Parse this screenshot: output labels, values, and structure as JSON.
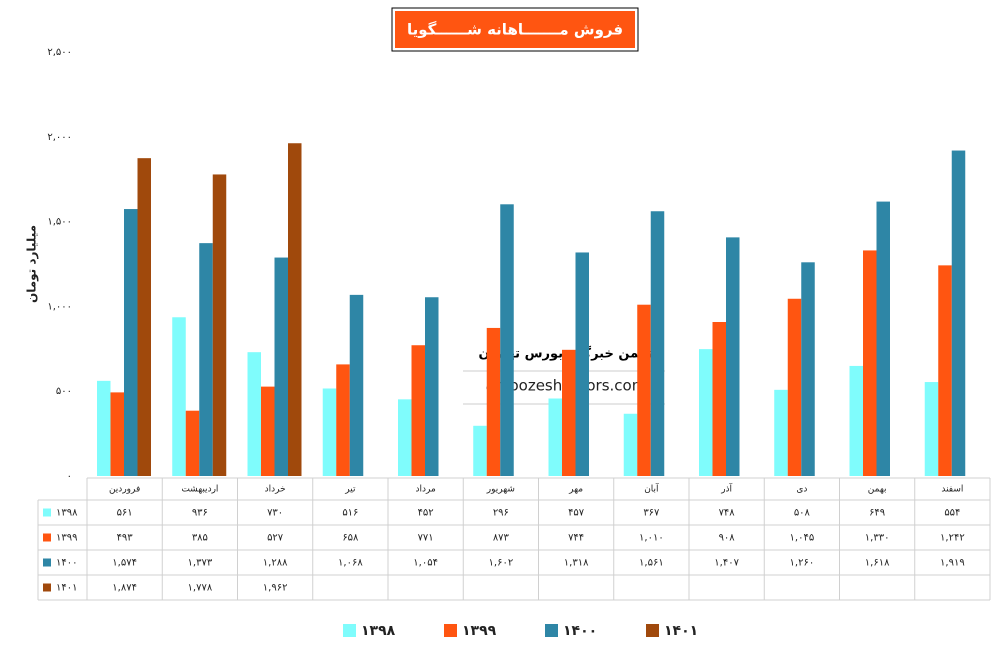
{
  "chart_data": {
    "type": "bar",
    "title": "فروش مـــــــاهانه شــــــگویا",
    "y_label": "میلیارد تومان",
    "annotations": [
      "انجمن خبرگان بورس تهـران",
      "amoozesh-boors.com"
    ],
    "categories": [
      "فروردین",
      "اردیبهشت",
      "خرداد",
      "تیر",
      "مرداد",
      "شهریور",
      "مهر",
      "آبان",
      "آذر",
      "دی",
      "بهمن",
      "اسفند"
    ],
    "series": [
      {
        "name": "۱۳۹۸",
        "color": "#7ffcfc",
        "values": [
          561,
          936,
          730,
          516,
          452,
          296,
          457,
          367,
          748,
          508,
          649,
          554
        ],
        "value_labels": [
          "۵۶۱",
          "۹۳۶",
          "۷۳۰",
          "۵۱۶",
          "۴۵۲",
          "۲۹۶",
          "۴۵۷",
          "۳۶۷",
          "۷۴۸",
          "۵۰۸",
          "۶۴۹",
          "۵۵۴"
        ]
      },
      {
        "name": "۱۳۹۹",
        "color": "#ff5511",
        "values": [
          493,
          385,
          527,
          658,
          771,
          873,
          744,
          1010,
          908,
          1045,
          1330,
          1242
        ],
        "value_labels": [
          "۴۹۳",
          "۳۸۵",
          "۵۲۷",
          "۶۵۸",
          "۷۷۱",
          "۸۷۳",
          "۷۴۴",
          "۱,۰۱۰",
          "۹۰۸",
          "۱,۰۴۵",
          "۱,۳۳۰",
          "۱,۲۴۲"
        ]
      },
      {
        "name": "۱۴۰۰",
        "color": "#2e86a6",
        "values": [
          1574,
          1373,
          1288,
          1068,
          1054,
          1602,
          1318,
          1561,
          1407,
          1260,
          1618,
          1919
        ],
        "value_labels": [
          "۱,۵۷۴",
          "۱,۳۷۳",
          "۱,۲۸۸",
          "۱,۰۶۸",
          "۱,۰۵۴",
          "۱,۶۰۲",
          "۱,۳۱۸",
          "۱,۵۶۱",
          "۱,۴۰۷",
          "۱,۲۶۰",
          "۱,۶۱۸",
          "۱,۹۱۹"
        ]
      },
      {
        "name": "۱۴۰۱",
        "color": "#a0490c",
        "values": [
          1874,
          1778,
          1962,
          null,
          null,
          null,
          null,
          null,
          null,
          null,
          null,
          null
        ],
        "value_labels": [
          "۱,۸۷۴",
          "۱,۷۷۸",
          "۱,۹۶۲",
          null,
          null,
          null,
          null,
          null,
          null,
          null,
          null,
          null
        ]
      }
    ],
    "ylim": [
      0,
      2500
    ],
    "yticks": [
      {
        "value": 0,
        "label": "۰"
      },
      {
        "value": 500,
        "label": "۵۰۰"
      },
      {
        "value": 1000,
        "label": "۱,۰۰۰"
      },
      {
        "value": 1500,
        "label": "۱,۵۰۰"
      },
      {
        "value": 2000,
        "label": "۲,۰۰۰"
      },
      {
        "value": 2500,
        "label": "۲,۵۰۰"
      }
    ],
    "grid": false,
    "legend": "bottom"
  }
}
